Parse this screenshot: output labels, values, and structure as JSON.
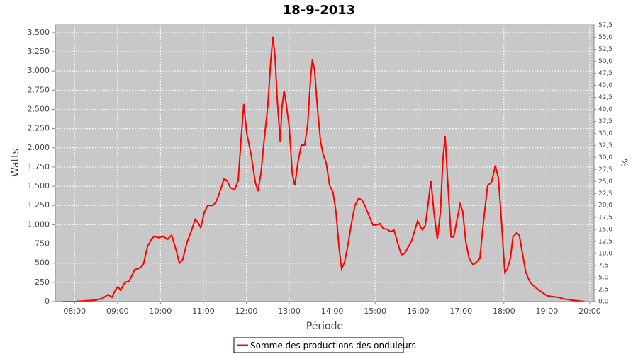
{
  "chart_data": {
    "type": "line",
    "title": "18-9-2013",
    "xlabel": "Période",
    "ylabel": "Watts",
    "y2label": "%",
    "x": [
      7.72,
      8,
      8.25,
      8.5,
      8.66,
      8.78,
      8.87,
      8.94,
      9.01,
      9.07,
      9.17,
      9.27,
      9.4,
      9.53,
      9.6,
      9.7,
      9.8,
      9.86,
      9.96,
      10.06,
      10.16,
      10.26,
      10.36,
      10.44,
      10.52,
      10.62,
      10.72,
      10.81,
      10.87,
      10.94,
      11.02,
      11.1,
      11.22,
      11.3,
      11.4,
      11.48,
      11.55,
      11.63,
      11.73,
      11.81,
      11.88,
      11.94,
      12.01,
      12.11,
      12.21,
      12.27,
      12.34,
      12.42,
      12.5,
      12.57,
      12.62,
      12.67,
      12.72,
      12.79,
      12.83,
      12.88,
      12.93,
      13,
      13.07,
      13.13,
      13.2,
      13.28,
      13.36,
      13.43,
      13.5,
      13.54,
      13.59,
      13.66,
      13.73,
      13.79,
      13.86,
      13.94,
      14.02,
      14.09,
      14.16,
      14.22,
      14.29,
      14.37,
      14.45,
      14.53,
      14.62,
      14.7,
      14.78,
      14.86,
      14.95,
      15.03,
      15.11,
      15.19,
      15.28,
      15.36,
      15.44,
      15.52,
      15.61,
      15.69,
      15.77,
      15.85,
      15.99,
      16.1,
      16.17,
      16.23,
      16.3,
      16.37,
      16.45,
      16.52,
      16.58,
      16.63,
      16.7,
      16.77,
      16.83,
      16.91,
      16.98,
      17.04,
      17.11,
      17.19,
      17.28,
      17.36,
      17.44,
      17.52,
      17.62,
      17.71,
      17.8,
      17.87,
      17.93,
      18.02,
      18.08,
      18.15,
      18.21,
      18.3,
      18.36,
      18.43,
      18.51,
      18.61,
      18.73,
      18.84,
      18.94,
      19.01,
      19.14,
      19.27,
      19.4,
      19.57,
      19.72,
      19.88
    ],
    "series": [
      {
        "name": "Somme des productions des onduleurs",
        "color": "#ff0000",
        "values": [
          0,
          0,
          10,
          20,
          45,
          92,
          55,
          140,
          195,
          147,
          250,
          265,
          415,
          440,
          480,
          720,
          820,
          850,
          830,
          850,
          810,
          865,
          680,
          500,
          550,
          775,
          920,
          1070,
          1030,
          960,
          1160,
          1250,
          1250,
          1300,
          1455,
          1595,
          1575,
          1480,
          1455,
          1575,
          2125,
          2570,
          2190,
          1915,
          1550,
          1435,
          1665,
          2125,
          2540,
          3140,
          3445,
          3185,
          2630,
          2080,
          2525,
          2745,
          2570,
          2265,
          1665,
          1510,
          1805,
          2035,
          2035,
          2310,
          2930,
          3150,
          3005,
          2495,
          2080,
          1915,
          1805,
          1510,
          1420,
          1160,
          700,
          425,
          515,
          745,
          1020,
          1250,
          1345,
          1315,
          1225,
          1115,
          995,
          995,
          1015,
          950,
          940,
          910,
          930,
          775,
          610,
          625,
          710,
          790,
          1050,
          930,
          995,
          1250,
          1575,
          1160,
          810,
          1160,
          1850,
          2155,
          1480,
          840,
          840,
          1070,
          1270,
          1175,
          790,
          560,
          480,
          515,
          560,
          1020,
          1510,
          1550,
          1770,
          1610,
          1160,
          380,
          425,
          560,
          840,
          895,
          860,
          635,
          380,
          250,
          185,
          140,
          100,
          75,
          65,
          55,
          35,
          20,
          10,
          0
        ]
      }
    ],
    "xlim": [
      7.55,
      20.1
    ],
    "xticks": [
      {
        "value": 8,
        "label": "08:00"
      },
      {
        "value": 9,
        "label": "09:00"
      },
      {
        "value": 10,
        "label": "10:00"
      },
      {
        "value": 11,
        "label": "11:00"
      },
      {
        "value": 12,
        "label": "12:00"
      },
      {
        "value": 13,
        "label": "13:00"
      },
      {
        "value": 14,
        "label": "14:00"
      },
      {
        "value": 15,
        "label": "15:00"
      },
      {
        "value": 16,
        "label": "16:00"
      },
      {
        "value": 17,
        "label": "17:00"
      },
      {
        "value": 18,
        "label": "18:00"
      },
      {
        "value": 19,
        "label": "19:00"
      },
      {
        "value": 20,
        "label": "20:00"
      }
    ],
    "ylim": [
      0,
      3600
    ],
    "yticks": [
      0,
      250,
      500,
      750,
      {
        "value": 1000,
        "label": "1.000"
      },
      {
        "value": 1250,
        "label": "1.250"
      },
      {
        "value": 1500,
        "label": "1.500"
      },
      {
        "value": 1750,
        "label": "1.750"
      },
      {
        "value": 2000,
        "label": "2.000"
      },
      {
        "value": 2250,
        "label": "2.250"
      },
      {
        "value": 2500,
        "label": "2.500"
      },
      {
        "value": 2750,
        "label": "2.750"
      },
      {
        "value": 3000,
        "label": "3.000"
      },
      {
        "value": 3250,
        "label": "3.250"
      },
      {
        "value": 3500,
        "label": "3.500"
      }
    ],
    "y2lim": [
      0,
      57.6
    ],
    "y2ticks": [
      {
        "value": 0,
        "label": "0,0"
      },
      {
        "value": 2.5,
        "label": "2,5"
      },
      {
        "value": 5,
        "label": "5,0"
      },
      {
        "value": 7.5,
        "label": "7,5"
      },
      {
        "value": 10,
        "label": "10,0"
      },
      {
        "value": 12.5,
        "label": "12,5"
      },
      {
        "value": 15,
        "label": "15,0"
      },
      {
        "value": 17.5,
        "label": "17,5"
      },
      {
        "value": 20,
        "label": "20,0"
      },
      {
        "value": 22.5,
        "label": "22,5"
      },
      {
        "value": 25,
        "label": "25,0"
      },
      {
        "value": 27.5,
        "label": "27,5"
      },
      {
        "value": 30,
        "label": "30,0"
      },
      {
        "value": 32.5,
        "label": "32,5"
      },
      {
        "value": 35,
        "label": "35,0"
      },
      {
        "value": 37.5,
        "label": "37,5"
      },
      {
        "value": 40,
        "label": "40,0"
      },
      {
        "value": 42.5,
        "label": "42,5"
      },
      {
        "value": 45,
        "label": "45,0"
      },
      {
        "value": 47.5,
        "label": "47,5"
      },
      {
        "value": 50,
        "label": "50,0"
      },
      {
        "value": 52.5,
        "label": "52,5"
      },
      {
        "value": 55,
        "label": "55,0"
      },
      {
        "value": 57.5,
        "label": "57,5"
      }
    ],
    "grid": true,
    "plot_background": "#c8c8c8",
    "legend_position": "bottom"
  }
}
